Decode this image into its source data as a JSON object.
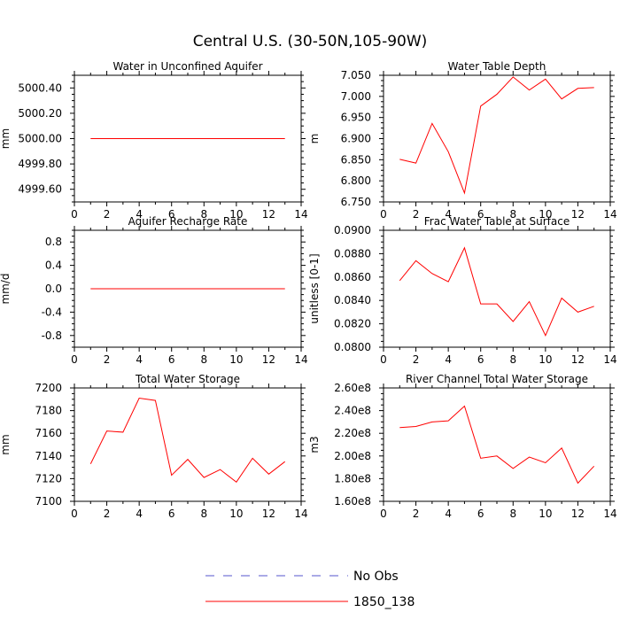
{
  "figure_title": "Central U.S. (30-50N,105-90W)",
  "legend": {
    "entries": [
      {
        "label": "No Obs",
        "color": "#5555cc",
        "style": "dashed"
      },
      {
        "label": "1850_138",
        "color": "#ff0000",
        "style": "solid"
      }
    ]
  },
  "chart_data": [
    {
      "type": "line",
      "title": "Water in Unconfined Aquifer",
      "xlabel": "",
      "ylabel": "mm",
      "xlim": [
        0,
        14
      ],
      "ylim": [
        4999.5,
        5000.5
      ],
      "xticks": [
        0,
        2,
        4,
        6,
        8,
        10,
        12,
        14
      ],
      "yticks": [
        4999.6,
        4999.8,
        5000.0,
        5000.2,
        5000.4
      ],
      "ytick_labels": [
        "4999.60",
        "4999.80",
        "5000.00",
        "5000.20",
        "5000.40"
      ],
      "series": [
        {
          "name": "1850_138",
          "color": "#ff0000",
          "x": [
            1,
            2,
            3,
            4,
            5,
            6,
            7,
            8,
            9,
            10,
            11,
            12,
            13
          ],
          "values": [
            5000,
            5000,
            5000,
            5000,
            5000,
            5000,
            5000,
            5000,
            5000,
            5000,
            5000,
            5000,
            5000
          ]
        }
      ]
    },
    {
      "type": "line",
      "title": "Water Table Depth",
      "xlabel": "",
      "ylabel": "m",
      "xlim": [
        0,
        14
      ],
      "ylim": [
        6.75,
        7.05
      ],
      "xticks": [
        0,
        2,
        4,
        6,
        8,
        10,
        12,
        14
      ],
      "yticks": [
        6.75,
        6.8,
        6.85,
        6.9,
        6.95,
        7.0,
        7.05
      ],
      "ytick_labels": [
        "6.750",
        "6.800",
        "6.850",
        "6.900",
        "6.950",
        "7.000",
        "7.050"
      ],
      "series": [
        {
          "name": "1850_138",
          "color": "#ff0000",
          "x": [
            1,
            2,
            3,
            4,
            5,
            6,
            7,
            8,
            9,
            10,
            11,
            12,
            13
          ],
          "values": [
            6.851,
            6.842,
            6.936,
            6.869,
            6.771,
            6.977,
            7.005,
            7.046,
            7.015,
            7.041,
            6.994,
            7.019,
            7.021
          ]
        }
      ]
    },
    {
      "type": "line",
      "title": "Aquifer Recharge Rate",
      "xlabel": "",
      "ylabel": "mm/d",
      "xlim": [
        0,
        14
      ],
      "ylim": [
        -1.0,
        1.0
      ],
      "xticks": [
        0,
        2,
        4,
        6,
        8,
        10,
        12,
        14
      ],
      "yticks": [
        -0.8,
        -0.4,
        0.0,
        0.4,
        0.8
      ],
      "ytick_labels": [
        "-0.8",
        "-0.4",
        "0.0",
        "0.4",
        "0.8"
      ],
      "series": [
        {
          "name": "1850_138",
          "color": "#ff0000",
          "x": [
            1,
            2,
            3,
            4,
            5,
            6,
            7,
            8,
            9,
            10,
            11,
            12,
            13
          ],
          "values": [
            0,
            0,
            0,
            0,
            0,
            0,
            0,
            0,
            0,
            0,
            0,
            0,
            0
          ]
        }
      ]
    },
    {
      "type": "line",
      "title": "Frac Water Table at Surface",
      "xlabel": "",
      "ylabel": "unitless [0-1]",
      "xlim": [
        0,
        14
      ],
      "ylim": [
        0.08,
        0.09
      ],
      "xticks": [
        0,
        2,
        4,
        6,
        8,
        10,
        12,
        14
      ],
      "yticks": [
        0.08,
        0.082,
        0.084,
        0.086,
        0.088,
        0.09
      ],
      "ytick_labels": [
        "0.0800",
        "0.0820",
        "0.0840",
        "0.0860",
        "0.0880",
        "0.0900"
      ],
      "series": [
        {
          "name": "1850_138",
          "color": "#ff0000",
          "x": [
            1,
            2,
            3,
            4,
            5,
            6,
            7,
            8,
            9,
            10,
            11,
            12,
            13
          ],
          "values": [
            0.0857,
            0.0874,
            0.0863,
            0.0856,
            0.0885,
            0.0837,
            0.0837,
            0.0822,
            0.0839,
            0.081,
            0.0842,
            0.083,
            0.0835
          ]
        }
      ]
    },
    {
      "type": "line",
      "title": "Total Water Storage",
      "xlabel": "",
      "ylabel": "mm",
      "xlim": [
        0,
        14
      ],
      "ylim": [
        7100,
        7200
      ],
      "xticks": [
        0,
        2,
        4,
        6,
        8,
        10,
        12,
        14
      ],
      "yticks": [
        7100,
        7120,
        7140,
        7160,
        7180,
        7200
      ],
      "ytick_labels": [
        "7100",
        "7120",
        "7140",
        "7160",
        "7180",
        "7200"
      ],
      "series": [
        {
          "name": "1850_138",
          "color": "#ff0000",
          "x": [
            1,
            2,
            3,
            4,
            5,
            6,
            7,
            8,
            9,
            10,
            11,
            12,
            13
          ],
          "values": [
            7133,
            7162,
            7161,
            7191,
            7189,
            7123,
            7137,
            7121,
            7128,
            7117,
            7138,
            7124,
            7135
          ]
        }
      ]
    },
    {
      "type": "line",
      "title": "River Channel Total Water Storage",
      "xlabel": "",
      "ylabel": "m3",
      "xlim": [
        0,
        14
      ],
      "ylim": [
        160000000.0,
        260000000.0
      ],
      "xticks": [
        0,
        2,
        4,
        6,
        8,
        10,
        12,
        14
      ],
      "yticks": [
        160000000.0,
        180000000.0,
        200000000.0,
        220000000.0,
        240000000.0,
        260000000.0
      ],
      "ytick_labels": [
        "1.60e8",
        "1.80e8",
        "2.00e8",
        "2.20e8",
        "2.40e8",
        "2.60e8"
      ],
      "series": [
        {
          "name": "1850_138",
          "color": "#ff0000",
          "x": [
            1,
            2,
            3,
            4,
            5,
            6,
            7,
            8,
            9,
            10,
            11,
            12,
            13
          ],
          "values": [
            225000000.0,
            226000000.0,
            230000000.0,
            231000000.0,
            244000000.0,
            198000000.0,
            200000000.0,
            189000000.0,
            199000000.0,
            194000000.0,
            207000000.0,
            176000000.0,
            191000000.0
          ]
        }
      ]
    }
  ]
}
